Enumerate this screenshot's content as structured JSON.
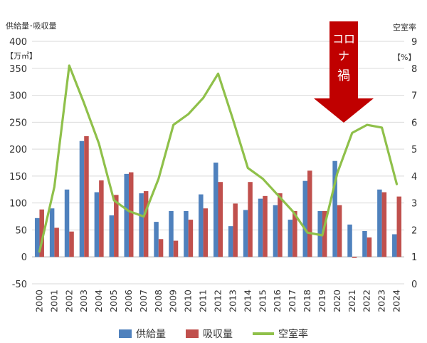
{
  "chart_data": {
    "type": "bar",
    "left_axis": {
      "title_line1": "供給量･吸収量",
      "title_line2": "【万㎡】",
      "ylim": [
        -50,
        400
      ],
      "ticks": [
        -50,
        0,
        50,
        100,
        150,
        200,
        250,
        300,
        350,
        400
      ]
    },
    "right_axis": {
      "title_line1": "空室率",
      "title_line2": "【%】",
      "ylim": [
        0,
        9
      ],
      "ticks": [
        0,
        1,
        2,
        3,
        4,
        5,
        6,
        7,
        8,
        9
      ]
    },
    "categories": [
      "2000",
      "2001",
      "2002",
      "2003",
      "2004",
      "2005",
      "2006",
      "2007",
      "2008",
      "2009",
      "2010",
      "2011",
      "2012",
      "2013",
      "2014",
      "2015",
      "2016",
      "2017",
      "2018",
      "2019",
      "2020",
      "2021",
      "2022",
      "2023",
      "2024"
    ],
    "series": [
      {
        "name": "供給量",
        "kind": "bar",
        "axis": "left",
        "color": "#4f81bd",
        "values": [
          72,
          90,
          125,
          215,
          120,
          77,
          154,
          118,
          65,
          85,
          85,
          116,
          175,
          57,
          87,
          108,
          96,
          69,
          141,
          85,
          178,
          60,
          48,
          125,
          42
        ]
      },
      {
        "name": "吸収量",
        "kind": "bar",
        "axis": "left",
        "color": "#c0504d",
        "values": [
          88,
          54,
          47,
          224,
          142,
          115,
          157,
          122,
          33,
          30,
          69,
          90,
          139,
          99,
          139,
          113,
          118,
          85,
          160,
          85,
          96,
          -2,
          36,
          120,
          112
        ]
      },
      {
        "name": "空室率",
        "kind": "line",
        "axis": "right",
        "color": "#8fc04a",
        "values": [
          1.2,
          3.6,
          8.1,
          6.7,
          5.2,
          3.1,
          2.7,
          2.5,
          3.9,
          5.9,
          6.3,
          6.9,
          7.8,
          6.1,
          4.3,
          3.9,
          3.3,
          2.7,
          1.9,
          1.8,
          4.1,
          5.6,
          5.9,
          5.8,
          3.7
        ]
      }
    ],
    "annotation": {
      "text_line1": "コロ",
      "text_line2": "ナ",
      "text_line3": "禍"
    },
    "grid": true,
    "legend_position": "bottom"
  }
}
